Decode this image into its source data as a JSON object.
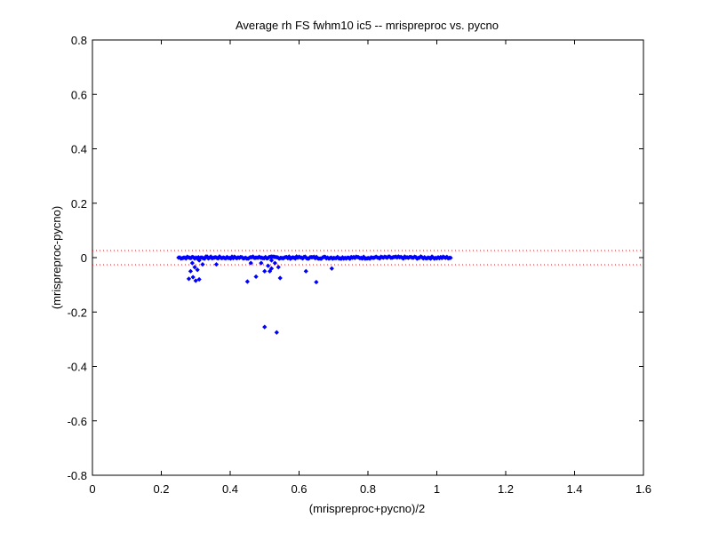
{
  "chart_data": {
    "type": "scatter",
    "title": "Average rh FS fwhm10 ic5 -- mrispreproc vs. pycno",
    "xlabel": "(mrispreproc+pycno)/2",
    "ylabel": "(mrispreproc-pycno)",
    "xlim": [
      0,
      1.6
    ],
    "ylim": [
      -0.8,
      0.8
    ],
    "xticks": [
      "0",
      "0.2",
      "0.4",
      "0.6",
      "0.8",
      "1",
      "1.2",
      "1.4",
      "1.6"
    ],
    "yticks": [
      "0.8",
      "0.6",
      "0.4",
      "0.2",
      "0",
      "-0.2",
      "-0.4",
      "-0.6",
      "-0.8"
    ],
    "grid": false,
    "marker_color": "#0000ff",
    "reference_line_color": "#ff0000",
    "reference_lines": [
      0.026,
      -0.026
    ],
    "dense_band": {
      "x_range": [
        0.25,
        1.04
      ],
      "y_center": 0.0,
      "y_spread": 0.004
    },
    "outliers": [
      {
        "x": 0.28,
        "y": -0.078
      },
      {
        "x": 0.285,
        "y": -0.05
      },
      {
        "x": 0.29,
        "y": -0.02
      },
      {
        "x": 0.292,
        "y": -0.072
      },
      {
        "x": 0.297,
        "y": -0.035
      },
      {
        "x": 0.3,
        "y": -0.085
      },
      {
        "x": 0.305,
        "y": -0.045
      },
      {
        "x": 0.31,
        "y": -0.08
      },
      {
        "x": 0.31,
        "y": -0.01
      },
      {
        "x": 0.32,
        "y": -0.025
      },
      {
        "x": 0.36,
        "y": -0.025
      },
      {
        "x": 0.45,
        "y": -0.088
      },
      {
        "x": 0.46,
        "y": -0.02
      },
      {
        "x": 0.475,
        "y": -0.07
      },
      {
        "x": 0.49,
        "y": -0.02
      },
      {
        "x": 0.5,
        "y": -0.255
      },
      {
        "x": 0.5,
        "y": -0.05
      },
      {
        "x": 0.51,
        "y": -0.03
      },
      {
        "x": 0.515,
        "y": -0.05
      },
      {
        "x": 0.52,
        "y": -0.01
      },
      {
        "x": 0.52,
        "y": -0.04
      },
      {
        "x": 0.53,
        "y": -0.02
      },
      {
        "x": 0.535,
        "y": -0.275
      },
      {
        "x": 0.54,
        "y": -0.035
      },
      {
        "x": 0.545,
        "y": -0.075
      },
      {
        "x": 0.62,
        "y": -0.05
      },
      {
        "x": 0.65,
        "y": -0.09
      },
      {
        "x": 0.695,
        "y": -0.04
      }
    ]
  }
}
